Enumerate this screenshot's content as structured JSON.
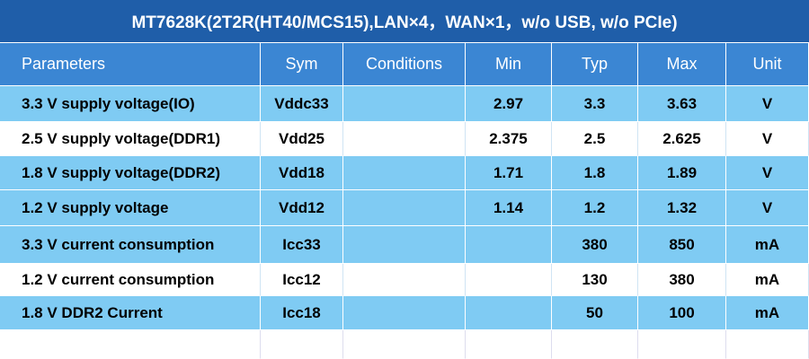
{
  "table": {
    "title": "MT7628K(2T2R(HT40/MCS15),LAN×4，WAN×1，w/o USB, w/o PCIe)",
    "header": [
      "Parameters",
      "Sym",
      "Conditions",
      "Min",
      "Typ",
      "Max",
      "Unit"
    ],
    "rows": [
      [
        "3.3 V supply voltage(IO)",
        "Vddc33",
        null,
        "2.97",
        "3.3",
        "3.63",
        "V"
      ],
      [
        "2.5 V supply voltage(DDR1)",
        "Vdd25",
        null,
        "2.375",
        "2.5",
        "2.625",
        "V"
      ],
      [
        "1.8 V supply voltage(DDR2)",
        "Vdd18",
        null,
        "1.71",
        "1.8",
        "1.89",
        "V"
      ],
      [
        "1.2 V supply voltage",
        "Vdd12",
        null,
        "1.14",
        "1.2",
        "1.32",
        "V"
      ],
      [
        "3.3 V current consumption",
        "Icc33",
        null,
        null,
        "380",
        "850",
        "mA"
      ],
      [
        "1.2 V current consumption",
        "Icc12",
        null,
        null,
        "130",
        "380",
        "mA"
      ],
      [
        "1.8 V DDR2 Current",
        "Icc18",
        null,
        null,
        "50",
        "100",
        "mA"
      ]
    ]
  }
}
